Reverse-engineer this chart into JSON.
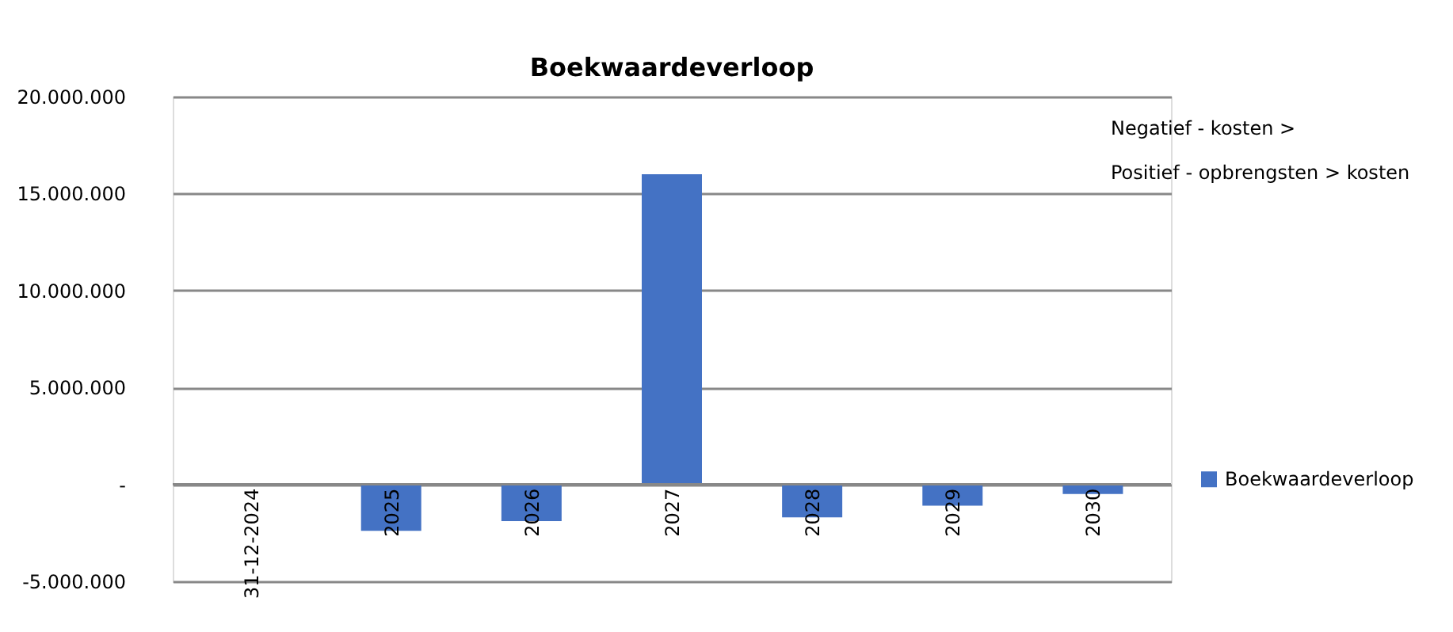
{
  "chart_data": {
    "type": "bar",
    "title": "Boekwaardeverloop",
    "categories": [
      "31-12-2024",
      "2025",
      "2026",
      "2027",
      "2028",
      "2029",
      "2030"
    ],
    "series": [
      {
        "name": "Boekwaardeverloop",
        "color": "#4472c4",
        "values": [
          0,
          -2400000,
          -1900000,
          16000000,
          -1700000,
          -1100000,
          -500000
        ]
      }
    ],
    "ylim": [
      -5000000,
      20000000
    ],
    "yticks": [
      {
        "value": -5000000,
        "label": "-5.000.000"
      },
      {
        "value": 0,
        "label": "-"
      },
      {
        "value": 5000000,
        "label": "5.000.000"
      },
      {
        "value": 10000000,
        "label": "10.000.000"
      },
      {
        "value": 15000000,
        "label": "15.000.000"
      },
      {
        "value": 20000000,
        "label": "20.000.000"
      }
    ],
    "grid": "y",
    "legend": "right",
    "annotations": [
      "Negatief - kosten >",
      "Positief - opbrengsten > kosten"
    ]
  }
}
